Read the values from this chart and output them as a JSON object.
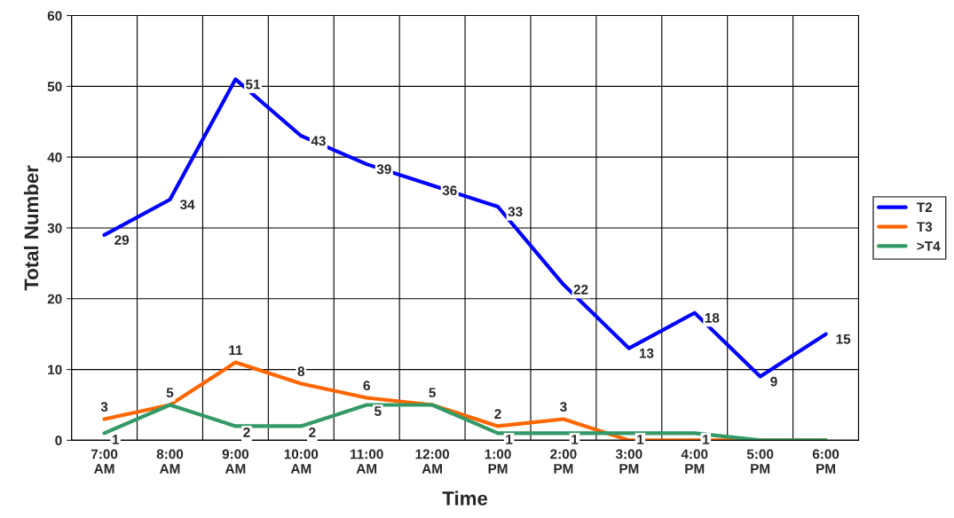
{
  "chart_data": {
    "type": "line",
    "xlabel": "Time",
    "ylabel": "Total Number",
    "categories": [
      "7:00\nAM",
      "8:00\nAM",
      "9:00\nAM",
      "10:00\nAM",
      "11:00\nAM",
      "12:00\nAM",
      "1:00\nPM",
      "2:00\nPM",
      "3:00\nPM",
      "4:00\nPM",
      "5:00\nPM",
      "6:00\nPM"
    ],
    "series": [
      {
        "name": "T2",
        "color": "#0000ff",
        "values": [
          29,
          34,
          51,
          43,
          39,
          36,
          33,
          22,
          13,
          18,
          9,
          15
        ],
        "value_labels": [
          "29",
          "34",
          "51",
          "43",
          "39",
          "36",
          "33",
          "22",
          "13",
          "18",
          "9",
          "15"
        ]
      },
      {
        "name": "T3",
        "color": "#ff6600",
        "values": [
          3,
          5,
          11,
          8,
          6,
          5,
          2,
          3,
          0,
          0,
          0,
          0
        ],
        "value_labels": [
          "3",
          "5",
          "11",
          "8",
          "6",
          "5",
          "2",
          "3",
          null,
          null,
          null,
          null
        ]
      },
      {
        "name": ">T4",
        "color": "#339966",
        "values": [
          1,
          5,
          2,
          2,
          5,
          5,
          1,
          1,
          1,
          1,
          0,
          0
        ],
        "value_labels": [
          "1",
          null,
          "2",
          "2",
          "5",
          null,
          "1",
          "1",
          "1",
          "1",
          null,
          null
        ]
      }
    ],
    "ylim": [
      0,
      60
    ],
    "yticks": [
      0,
      10,
      20,
      30,
      40,
      50,
      60
    ],
    "grid": true,
    "legend": "right",
    "marker": "none",
    "line_style": "solid"
  }
}
